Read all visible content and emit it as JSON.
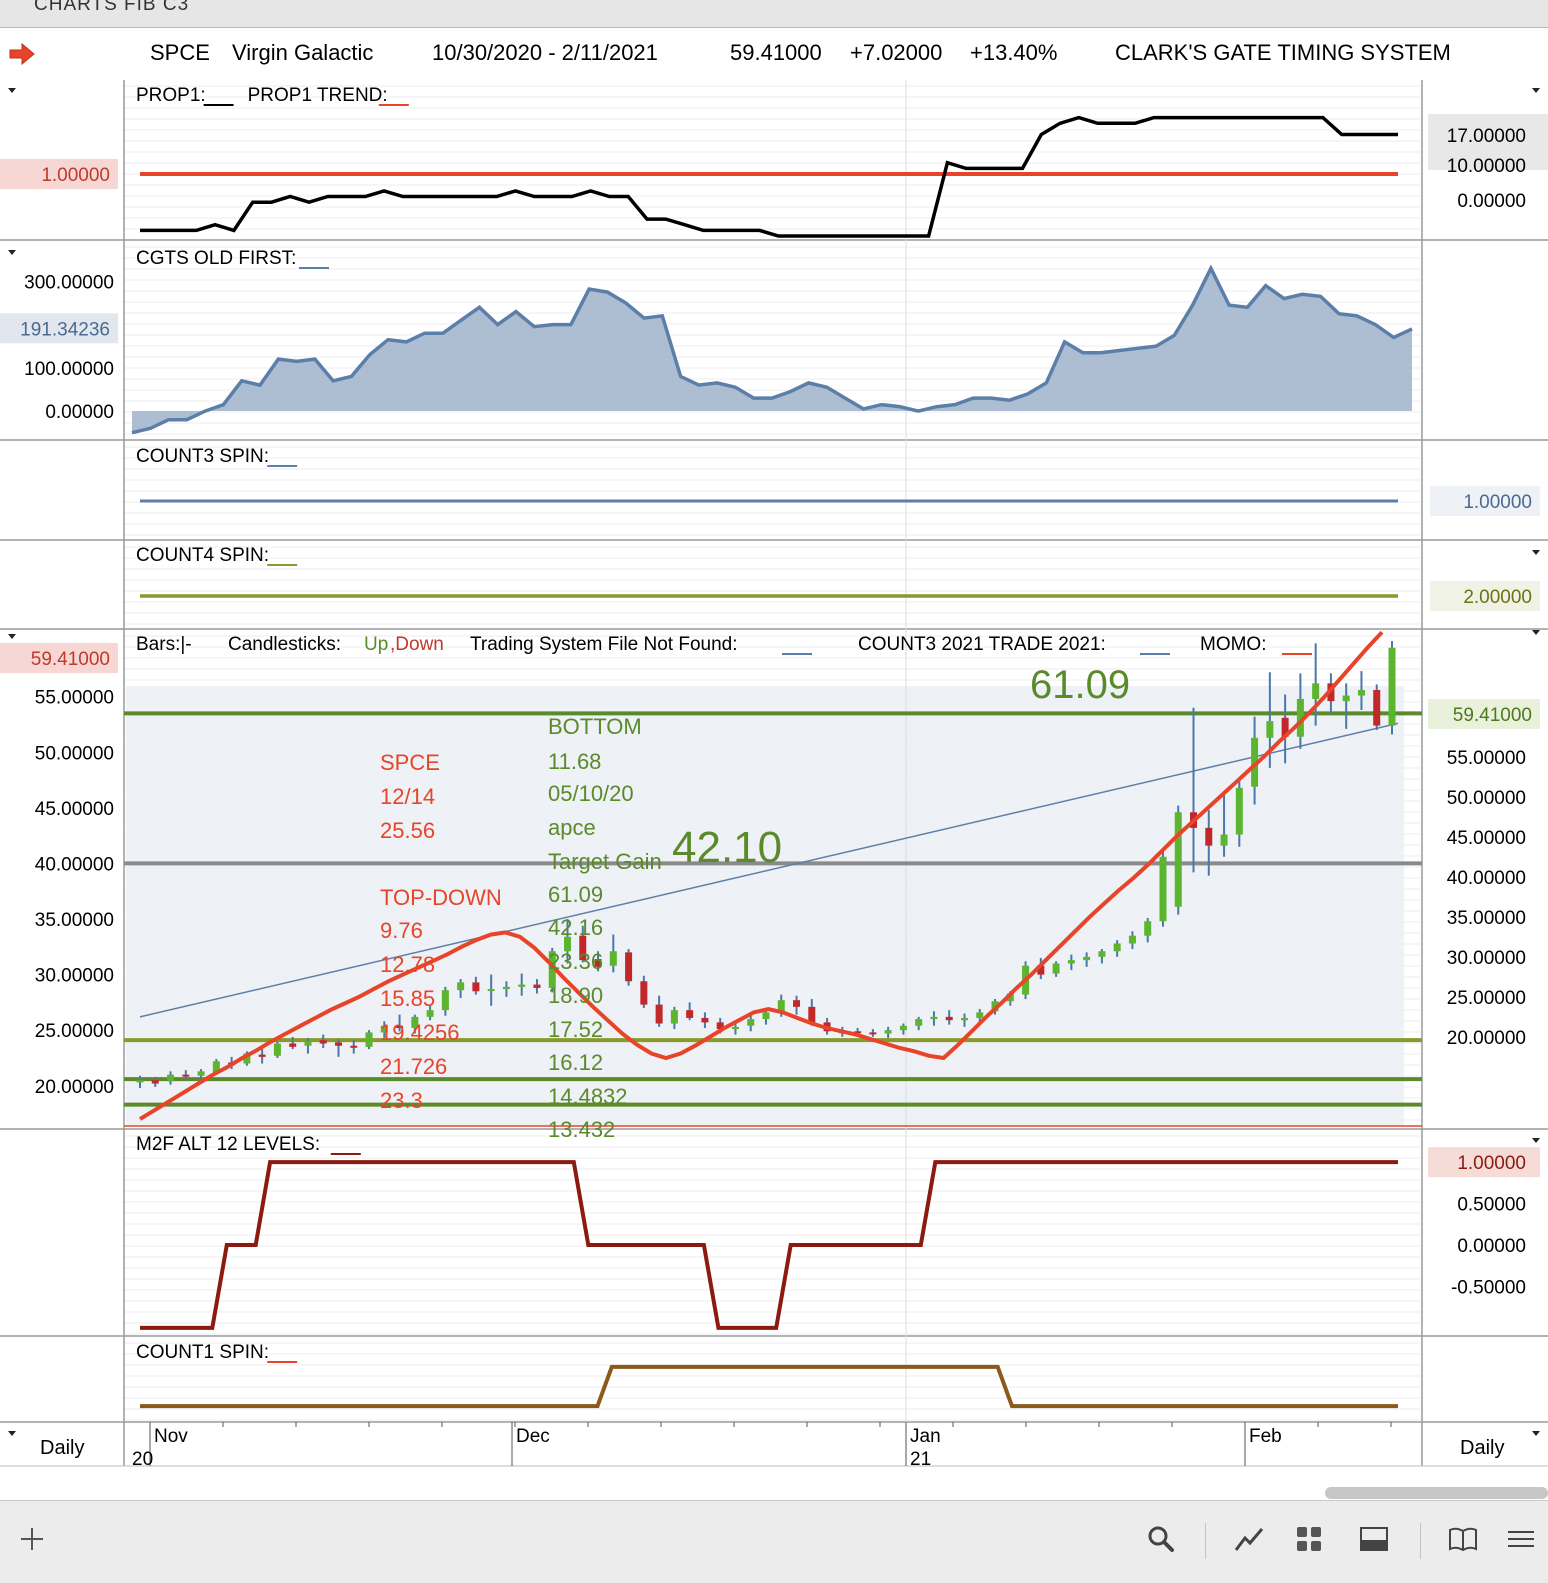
{
  "window": {
    "title": "CHARTS FIB C3"
  },
  "header": {
    "symbol": "SPCE",
    "company": "Virgin Galactic",
    "date_range": "10/30/2020 - 2/11/2021",
    "last": "59.41000",
    "change": "+7.02000",
    "change_pct": "+13.40%",
    "system": "CLARK'S GATE TIMING SYSTEM"
  },
  "footer": {
    "left_period": "Daily",
    "right_period": "Daily"
  },
  "colors": {
    "red": "#e8442a",
    "black": "#000000",
    "blue": "#5b7fa8",
    "olive": "#8a9a2a",
    "green": "#5a8a2a",
    "maroon": "#8b1a10",
    "brown": "#8a5a1a",
    "gray": "#8a8a8a"
  },
  "chart_data": [
    {
      "type": "line",
      "panel": "PROP1",
      "legend": [
        {
          "label": "PROP1:",
          "swatch": "#000000"
        },
        {
          "label": "PROP1 TREND:",
          "swatch": "#e8442a"
        }
      ],
      "y_ticks": [
        "17.00000",
        "10.00000",
        "0.00000"
      ],
      "left_value": "1.00000",
      "series": [
        {
          "color": "#000000",
          "values": [
            0,
            0,
            0,
            0,
            1,
            0,
            5,
            5,
            6,
            5,
            6,
            6,
            6,
            7,
            6,
            6,
            6,
            6,
            6,
            6,
            7,
            6,
            6,
            6,
            7,
            6,
            6,
            2,
            2,
            1,
            0,
            0,
            0,
            0,
            -1,
            -1,
            -1,
            -1,
            -1,
            -1,
            -1,
            -1,
            -1,
            12,
            11,
            11,
            11,
            11,
            17,
            19,
            20,
            19,
            19,
            19,
            20,
            20,
            20,
            20,
            20,
            20,
            20,
            20,
            20,
            20,
            17,
            17,
            17,
            17
          ]
        },
        {
          "color": "#e8442a",
          "values": [
            10
          ]
        }
      ]
    },
    {
      "type": "area",
      "panel": "CGTS OLD FIRST",
      "legend": [
        {
          "label": "CGTS OLD FIRST:",
          "swatch": "#5b7fa8"
        }
      ],
      "y_ticks": [
        "300.00000",
        "100.00000",
        "0.00000"
      ],
      "left_value": "191.34236",
      "series": [
        {
          "color": "#5b7fa8",
          "values": [
            -50,
            -40,
            -20,
            -20,
            0,
            15,
            70,
            60,
            120,
            115,
            120,
            70,
            80,
            130,
            165,
            160,
            180,
            180,
            210,
            240,
            200,
            230,
            195,
            200,
            200,
            282,
            275,
            250,
            215,
            220,
            80,
            60,
            65,
            55,
            30,
            30,
            45,
            65,
            55,
            30,
            5,
            15,
            10,
            0,
            10,
            15,
            30,
            30,
            25,
            40,
            65,
            160,
            135,
            135,
            140,
            145,
            150,
            175,
            245,
            330,
            245,
            240,
            290,
            260,
            270,
            265,
            225,
            220,
            200,
            170,
            190
          ]
        }
      ]
    },
    {
      "type": "line",
      "panel": "COUNT3 SPIN",
      "legend": [
        {
          "label": "COUNT3 SPIN:",
          "swatch": "#5b7fa8"
        }
      ],
      "right_value": "1.00000",
      "series": [
        {
          "color": "#5b7fa8",
          "values": [
            1
          ]
        }
      ]
    },
    {
      "type": "line",
      "panel": "COUNT4 SPIN",
      "legend": [
        {
          "label": "COUNT4 SPIN:",
          "swatch": "#8a9a2a"
        }
      ],
      "right_value": "2.00000",
      "series": [
        {
          "color": "#8a9a2a",
          "values": [
            2
          ]
        }
      ]
    },
    {
      "type": "candlestick",
      "panel": "Price",
      "legend": [
        {
          "label": "Bars:|-",
          "swatch": ""
        },
        {
          "label": "Candlesticks:",
          "swatch": ""
        },
        {
          "label": "Up",
          "swatch": ""
        },
        {
          "label": ",Down",
          "swatch": ""
        },
        {
          "label": "Trading System File Not Found:",
          "swatch": "#5b7fa8"
        },
        {
          "label": "COUNT3 2021 TRADE 2021:",
          "swatch": "#5b7fa8"
        },
        {
          "label": "MOMO:",
          "swatch": "#e8442a"
        }
      ],
      "left_ticks": [
        "55.00000",
        "50.00000",
        "45.00000",
        "40.00000",
        "35.00000",
        "30.00000",
        "25.00000",
        "20.00000"
      ],
      "right_ticks": [
        "55.00000",
        "50.00000",
        "45.00000",
        "40.00000",
        "35.00000",
        "30.00000",
        "25.00000",
        "20.00000"
      ],
      "left_last": "59.41000",
      "right_last": "59.41000",
      "ylim": [
        18,
        56.5
      ],
      "x_labels": [
        "Nov",
        "Dec",
        "Jan",
        "Feb"
      ],
      "x_years": [
        "20",
        "21"
      ],
      "candles": [
        [
          20.3,
          20.9,
          19.8,
          20.5
        ],
        [
          20.5,
          20.8,
          19.9,
          20.2
        ],
        [
          20.4,
          21.3,
          20.1,
          21.0
        ],
        [
          21.0,
          21.4,
          20.6,
          20.9
        ],
        [
          20.9,
          21.5,
          20.6,
          21.3
        ],
        [
          21.2,
          22.4,
          21.0,
          22.2
        ],
        [
          22.1,
          22.6,
          21.5,
          21.9
        ],
        [
          22.0,
          23.1,
          21.8,
          22.9
        ],
        [
          22.8,
          23.3,
          22.0,
          22.6
        ],
        [
          22.7,
          24.0,
          22.5,
          23.8
        ],
        [
          23.8,
          24.4,
          23.3,
          23.5
        ],
        [
          23.6,
          24.3,
          22.9,
          24.0
        ],
        [
          24.1,
          24.6,
          23.4,
          23.8
        ],
        [
          23.9,
          24.2,
          22.6,
          23.6
        ],
        [
          23.6,
          24.1,
          22.9,
          23.5
        ],
        [
          23.5,
          25.0,
          23.3,
          24.8
        ],
        [
          24.8,
          25.8,
          24.3,
          25.4
        ],
        [
          25.4,
          26.4,
          24.9,
          25.2
        ],
        [
          25.2,
          26.4,
          24.7,
          26.2
        ],
        [
          26.2,
          27.2,
          25.9,
          26.8
        ],
        [
          26.8,
          28.9,
          26.3,
          28.6
        ],
        [
          28.6,
          29.6,
          27.9,
          29.3
        ],
        [
          29.3,
          29.8,
          28.2,
          28.5
        ],
        [
          28.6,
          30.0,
          27.2,
          28.7
        ],
        [
          28.7,
          29.4,
          28.0,
          28.9
        ],
        [
          28.9,
          30.1,
          28.1,
          29.1
        ],
        [
          29.1,
          29.6,
          28.3,
          28.8
        ],
        [
          28.8,
          32.4,
          28.4,
          32.1
        ],
        [
          32.1,
          35.0,
          31.0,
          33.4
        ],
        [
          33.5,
          34.4,
          31.1,
          31.3
        ],
        [
          31.4,
          32.1,
          30.3,
          30.7
        ],
        [
          30.8,
          33.6,
          30.2,
          32.1
        ],
        [
          32.0,
          32.3,
          29.0,
          29.4
        ],
        [
          29.4,
          29.9,
          27.0,
          27.3
        ],
        [
          27.3,
          28.1,
          25.3,
          25.6
        ],
        [
          25.6,
          27.1,
          25.1,
          26.8
        ],
        [
          26.8,
          27.5,
          25.9,
          26.1
        ],
        [
          26.1,
          26.6,
          25.2,
          25.7
        ],
        [
          25.7,
          26.1,
          24.7,
          25.1
        ],
        [
          25.1,
          25.9,
          24.6,
          25.3
        ],
        [
          25.4,
          26.3,
          24.9,
          26.0
        ],
        [
          26.0,
          27.0,
          25.5,
          26.6
        ],
        [
          26.6,
          28.2,
          26.2,
          27.7
        ],
        [
          27.7,
          28.1,
          26.4,
          27.1
        ],
        [
          27.1,
          27.8,
          25.4,
          25.7
        ],
        [
          25.7,
          26.1,
          24.6,
          24.9
        ],
        [
          24.9,
          25.3,
          24.4,
          24.9
        ],
        [
          24.9,
          25.2,
          24.5,
          24.8
        ],
        [
          24.8,
          25.1,
          24.4,
          24.7
        ],
        [
          24.7,
          25.3,
          24.3,
          25.0
        ],
        [
          25.0,
          25.6,
          24.6,
          25.4
        ],
        [
          25.4,
          26.2,
          25.0,
          26.0
        ],
        [
          26.0,
          26.7,
          25.4,
          26.2
        ],
        [
          26.2,
          26.8,
          25.5,
          25.9
        ],
        [
          25.9,
          26.5,
          25.3,
          26.1
        ],
        [
          26.1,
          26.9,
          25.7,
          26.6
        ],
        [
          26.7,
          27.8,
          26.4,
          27.6
        ],
        [
          27.6,
          28.5,
          27.2,
          28.3
        ],
        [
          28.2,
          31.2,
          27.8,
          30.8
        ],
        [
          30.8,
          31.5,
          29.6,
          30.0
        ],
        [
          30.1,
          31.2,
          29.8,
          31.0
        ],
        [
          31.0,
          31.8,
          30.4,
          31.3
        ],
        [
          31.3,
          32.0,
          30.7,
          31.6
        ],
        [
          31.6,
          32.3,
          31.0,
          32.1
        ],
        [
          32.1,
          33.1,
          31.6,
          32.8
        ],
        [
          32.8,
          33.9,
          32.3,
          33.5
        ],
        [
          33.5,
          35.1,
          32.9,
          34.8
        ],
        [
          34.8,
          41.3,
          34.3,
          40.6
        ],
        [
          36.1,
          45.2,
          35.4,
          44.6
        ],
        [
          44.6,
          54.0,
          39.2,
          43.2
        ],
        [
          43.2,
          44.8,
          38.9,
          41.6
        ],
        [
          41.6,
          46.5,
          40.6,
          42.6
        ],
        [
          42.6,
          47.5,
          41.5,
          46.8
        ],
        [
          46.9,
          53.2,
          45.3,
          51.3
        ],
        [
          51.3,
          57.2,
          48.6,
          52.8
        ],
        [
          53.1,
          55.2,
          49.0,
          51.4
        ],
        [
          51.4,
          57.1,
          50.3,
          54.8
        ],
        [
          54.8,
          59.8,
          52.4,
          56.2
        ],
        [
          56.2,
          57.1,
          53.4,
          54.6
        ],
        [
          54.6,
          56.2,
          52.1,
          55.1
        ],
        [
          55.1,
          57.3,
          53.8,
          55.6
        ],
        [
          55.6,
          56.1,
          52.0,
          52.4
        ],
        [
          52.4,
          60.0,
          51.6,
          59.4
        ]
      ],
      "momo_line": [
        17.0,
        17.8,
        18.6,
        19.4,
        20.2,
        21.0,
        21.7,
        22.5,
        23.2,
        24.0,
        24.7,
        25.4,
        26.1,
        26.8,
        27.4,
        28.0,
        28.7,
        29.4,
        30.0,
        30.6,
        31.2,
        31.8,
        32.5,
        33.1,
        33.6,
        33.8,
        33.4,
        32.4,
        31.1,
        29.7,
        28.4,
        27.1,
        25.9,
        24.7,
        23.7,
        22.9,
        22.5,
        22.9,
        23.6,
        24.4,
        25.2,
        25.9,
        26.6,
        26.9,
        26.6,
        26.1,
        25.6,
        25.2,
        24.9,
        24.6,
        24.2,
        23.8,
        23.4,
        23.1,
        22.7,
        22.5,
        23.7,
        25.0,
        26.3,
        27.5,
        28.8,
        30.0,
        31.3,
        32.6,
        33.9,
        35.2,
        36.4,
        37.6,
        38.7,
        39.9,
        41.2,
        42.5,
        43.7,
        44.9,
        46.1,
        47.3,
        48.5,
        49.7,
        51.0,
        52.2,
        53.5,
        54.9,
        56.4,
        57.9,
        59.4,
        60.8
      ],
      "regression_line": [
        [
          0,
          26.2
        ],
        [
          88,
          52.6
        ]
      ],
      "levels": [
        {
          "y": 53.5,
          "color": "#5a8a2a"
        },
        {
          "y": 40.0,
          "color": "#8a8a8a"
        },
        {
          "y": 24.1,
          "color": "#8a9a2a"
        },
        {
          "y": 20.6,
          "color": "#5a8a2a"
        },
        {
          "y": 18.3,
          "color": "#5a8a2a"
        }
      ],
      "annotations_red": [
        "SPCE",
        "12/14",
        "25.56",
        "TOP-DOWN",
        "9.76",
        "12.78",
        "15.85",
        "19.4256",
        "21.726",
        "23.3"
      ],
      "annotations_green": [
        "BOTTOM",
        "11.68",
        "05/10/20",
        "apce",
        "Target Gain",
        "61.09",
        "42.16",
        "23.36",
        "18.90",
        "17.52",
        "16.12",
        "14.4832",
        "13.432"
      ],
      "big_labels": [
        "61.09",
        "42.10"
      ]
    },
    {
      "type": "line",
      "panel": "M2F ALT 12 LEVELS",
      "legend": [
        {
          "label": "M2F ALT 12 LEVELS:",
          "swatch": "#8b1a10"
        }
      ],
      "y_ticks": [
        "1.00000",
        "0.50000",
        "0.00000",
        "-0.50000"
      ],
      "right_value": "1.00000",
      "series": [
        {
          "color": "#8b1a10",
          "values": [
            -1,
            -1,
            -1,
            -1,
            -1,
            -1,
            0,
            0,
            0,
            1,
            1,
            1,
            1,
            1,
            1,
            1,
            1,
            1,
            1,
            1,
            1,
            1,
            1,
            1,
            1,
            1,
            1,
            1,
            1,
            1,
            1,
            0,
            0,
            0,
            0,
            0,
            0,
            0,
            0,
            0,
            -1,
            -1,
            -1,
            -1,
            -1,
            0,
            0,
            0,
            0,
            0,
            0,
            0,
            0,
            0,
            0,
            1,
            1,
            1,
            1,
            1,
            1,
            1,
            1,
            1,
            1,
            1,
            1,
            1,
            1,
            1,
            1,
            1,
            1,
            1,
            1,
            1,
            1,
            1,
            1,
            1,
            1,
            1,
            1,
            1,
            1,
            1,
            1,
            1
          ]
        }
      ]
    },
    {
      "type": "line",
      "panel": "COUNT1 SPIN",
      "legend": [
        {
          "label": "COUNT1 SPIN:",
          "swatch": "#e8442a"
        }
      ],
      "series": [
        {
          "color": "#8a5a1a",
          "values": [
            0,
            0,
            0,
            0,
            0,
            0,
            0,
            0,
            0,
            0,
            0,
            0,
            0,
            0,
            0,
            0,
            0,
            0,
            0,
            0,
            0,
            0,
            0,
            0,
            0,
            0,
            0,
            0,
            0,
            0,
            0,
            0,
            0,
            1,
            1,
            1,
            1,
            1,
            1,
            1,
            1,
            1,
            1,
            1,
            1,
            1,
            1,
            1,
            1,
            1,
            1,
            1,
            1,
            1,
            1,
            1,
            1,
            1,
            1,
            1,
            1,
            0,
            0,
            0,
            0,
            0,
            0,
            0,
            0,
            0,
            0,
            0,
            0,
            0,
            0,
            0,
            0,
            0,
            0,
            0,
            0,
            0,
            0,
            0,
            0,
            0,
            0,
            0,
            0
          ]
        }
      ]
    }
  ]
}
